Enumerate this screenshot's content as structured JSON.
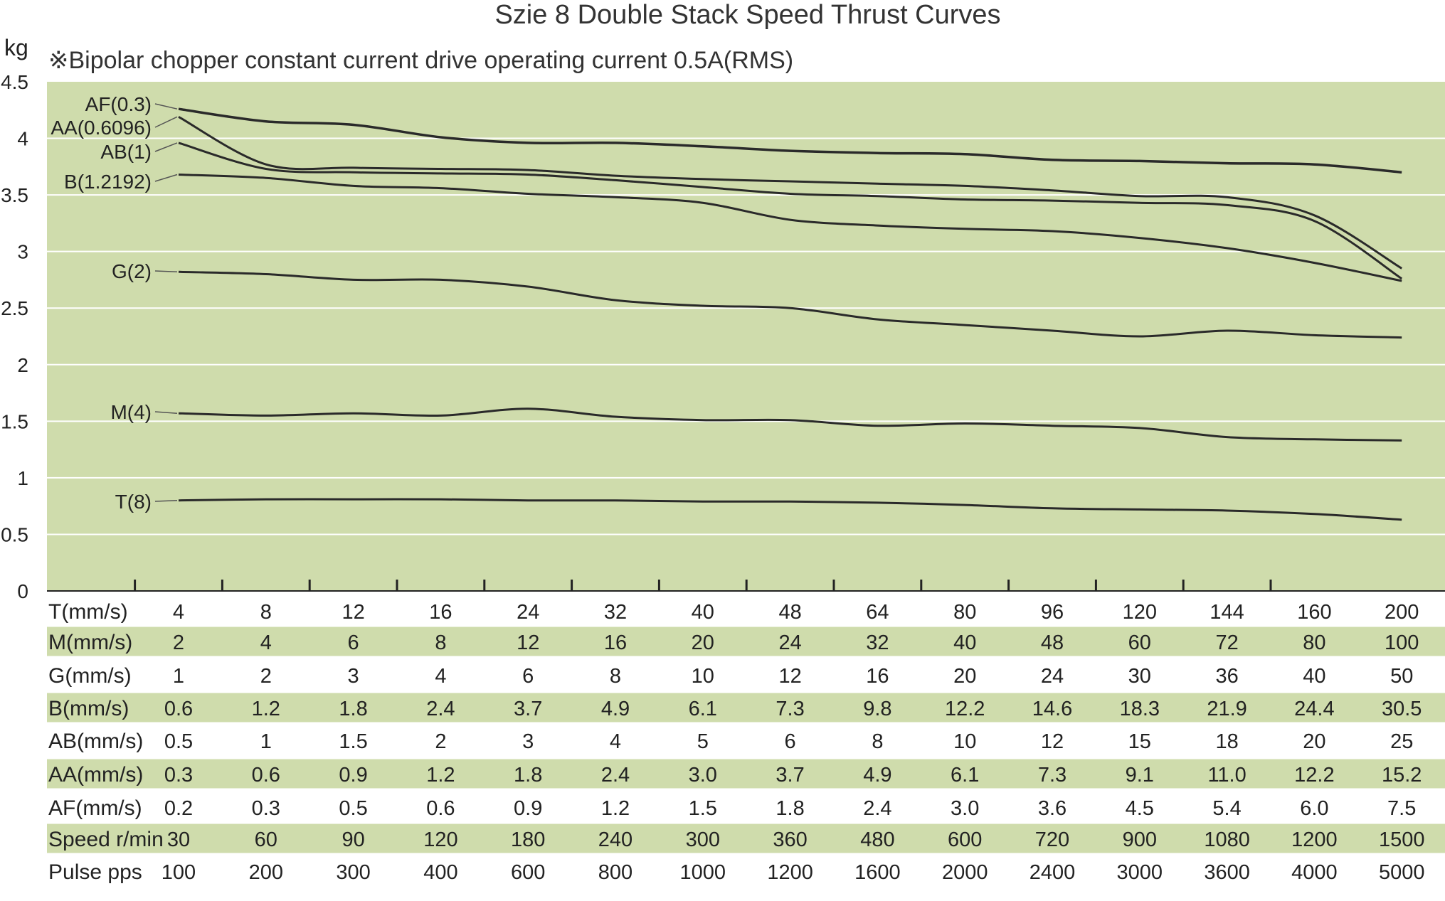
{
  "chart_data": {
    "type": "line",
    "title": "Szie 8 Double Stack Speed Thrust Curves",
    "note": "※Bipolar chopper constant current drive operating current 0.5A(RMS)",
    "ylabel": "kg",
    "ylim": [
      0,
      4.5
    ],
    "yticks": [
      "0",
      "0.5",
      "1",
      "1.5",
      "2",
      "2.5",
      "3",
      "3.5",
      "4",
      "4.5"
    ],
    "grid": true,
    "colors": {
      "plot_bg": "#cfdcac",
      "row_bg": "#cfdcac",
      "line": "#2a2a2a",
      "grid": "#ffffff"
    },
    "series": [
      {
        "name": "AF(0.3)",
        "values": [
          4.26,
          4.15,
          4.12,
          4.01,
          3.96,
          3.96,
          3.93,
          3.89,
          3.87,
          3.86,
          3.81,
          3.8,
          3.78,
          3.77,
          3.7
        ]
      },
      {
        "name": "AA(0.6096)",
        "values": [
          4.19,
          3.77,
          3.74,
          3.73,
          3.72,
          3.67,
          3.64,
          3.62,
          3.6,
          3.58,
          3.54,
          3.49,
          3.48,
          3.32,
          2.85
        ]
      },
      {
        "name": "AB(1)",
        "values": [
          3.96,
          3.73,
          3.7,
          3.69,
          3.68,
          3.63,
          3.57,
          3.51,
          3.49,
          3.46,
          3.45,
          3.43,
          3.41,
          3.27,
          2.76
        ]
      },
      {
        "name": "B(1.2192)",
        "values": [
          3.68,
          3.65,
          3.58,
          3.56,
          3.51,
          3.48,
          3.43,
          3.28,
          3.23,
          3.2,
          3.18,
          3.12,
          3.03,
          2.9,
          2.74
        ]
      },
      {
        "name": "G(2)",
        "values": [
          2.82,
          2.8,
          2.75,
          2.75,
          2.69,
          2.57,
          2.52,
          2.5,
          2.4,
          2.35,
          2.3,
          2.25,
          2.3,
          2.26,
          2.24
        ]
      },
      {
        "name": "M(4)",
        "values": [
          1.57,
          1.55,
          1.57,
          1.55,
          1.61,
          1.54,
          1.51,
          1.51,
          1.46,
          1.48,
          1.46,
          1.44,
          1.36,
          1.34,
          1.33
        ]
      },
      {
        "name": "T(8)",
        "values": [
          0.8,
          0.81,
          0.81,
          0.81,
          0.8,
          0.8,
          0.79,
          0.79,
          0.78,
          0.76,
          0.73,
          0.72,
          0.71,
          0.68,
          0.63
        ]
      }
    ],
    "table": [
      {
        "label": "T(mm/s)",
        "shaded": false,
        "values": [
          "4",
          "8",
          "12",
          "16",
          "24",
          "32",
          "40",
          "48",
          "64",
          "80",
          "96",
          "120",
          "144",
          "160",
          "200"
        ]
      },
      {
        "label": "M(mm/s)",
        "shaded": true,
        "values": [
          "2",
          "4",
          "6",
          "8",
          "12",
          "16",
          "20",
          "24",
          "32",
          "40",
          "48",
          "60",
          "72",
          "80",
          "100"
        ]
      },
      {
        "label": "G(mm/s)",
        "shaded": false,
        "values": [
          "1",
          "2",
          "3",
          "4",
          "6",
          "8",
          "10",
          "12",
          "16",
          "20",
          "24",
          "30",
          "36",
          "40",
          "50"
        ]
      },
      {
        "label": "B(mm/s)",
        "shaded": true,
        "values": [
          "0.6",
          "1.2",
          "1.8",
          "2.4",
          "3.7",
          "4.9",
          "6.1",
          "7.3",
          "9.8",
          "12.2",
          "14.6",
          "18.3",
          "21.9",
          "24.4",
          "30.5"
        ]
      },
      {
        "label": "AB(mm/s)",
        "shaded": false,
        "values": [
          "0.5",
          "1",
          "1.5",
          "2",
          "3",
          "4",
          "5",
          "6",
          "8",
          "10",
          "12",
          "15",
          "18",
          "20",
          "25"
        ]
      },
      {
        "label": "AA(mm/s)",
        "shaded": true,
        "values": [
          "0.3",
          "0.6",
          "0.9",
          "1.2",
          "1.8",
          "2.4",
          "3.0",
          "3.7",
          "4.9",
          "6.1",
          "7.3",
          "9.1",
          "11.0",
          "12.2",
          "15.2"
        ]
      },
      {
        "label": "AF(mm/s)",
        "shaded": false,
        "values": [
          "0.2",
          "0.3",
          "0.5",
          "0.6",
          "0.9",
          "1.2",
          "1.5",
          "1.8",
          "2.4",
          "3.0",
          "3.6",
          "4.5",
          "5.4",
          "6.0",
          "7.5"
        ]
      },
      {
        "label": "Speed r/min",
        "shaded": true,
        "values": [
          "30",
          "60",
          "90",
          "120",
          "180",
          "240",
          "300",
          "360",
          "480",
          "600",
          "720",
          "900",
          "1080",
          "1200",
          "1500"
        ]
      },
      {
        "label": "Pulse pps",
        "shaded": false,
        "values": [
          "100",
          "200",
          "300",
          "400",
          "600",
          "800",
          "1000",
          "1200",
          "1600",
          "2000",
          "2400",
          "3000",
          "3600",
          "4000",
          "5000"
        ]
      }
    ]
  }
}
